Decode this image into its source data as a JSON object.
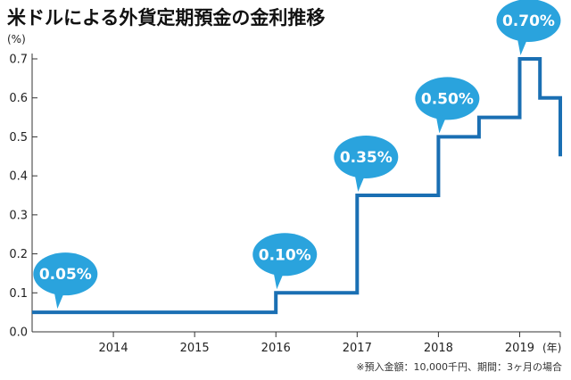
{
  "chart_data": {
    "type": "line",
    "step": true,
    "title": "米ドルによる外貨定期預金の金利推移",
    "ylabel": "(%)",
    "xunit": "(年)",
    "ylim": [
      0.0,
      0.7
    ],
    "yticks": [
      "0.0",
      "0.1",
      "0.2",
      "0.3",
      "0.4",
      "0.5",
      "0.6",
      "0.7"
    ],
    "xlim": [
      2013.0,
      2019.5
    ],
    "xticks": [
      "2014",
      "2015",
      "2016",
      "2017",
      "2018",
      "2019"
    ],
    "grid": false,
    "series": [
      {
        "color": "#1a6fb3",
        "points": [
          {
            "x": 2013.0,
            "y": 0.05
          },
          {
            "x": 2016.0,
            "y": 0.05
          },
          {
            "x": 2016.0,
            "y": 0.1
          },
          {
            "x": 2017.0,
            "y": 0.1
          },
          {
            "x": 2017.0,
            "y": 0.35
          },
          {
            "x": 2018.0,
            "y": 0.35
          },
          {
            "x": 2018.0,
            "y": 0.5
          },
          {
            "x": 2018.5,
            "y": 0.5
          },
          {
            "x": 2018.5,
            "y": 0.55
          },
          {
            "x": 2019.0,
            "y": 0.55
          },
          {
            "x": 2019.0,
            "y": 0.7
          },
          {
            "x": 2019.25,
            "y": 0.7
          },
          {
            "x": 2019.25,
            "y": 0.6
          },
          {
            "x": 2019.5,
            "y": 0.6
          },
          {
            "x": 2019.5,
            "y": 0.45
          }
        ]
      }
    ],
    "annotations": [
      {
        "label": "0.05%",
        "x": 2013.3,
        "y": 0.05
      },
      {
        "label": "0.10%",
        "x": 2016.0,
        "y": 0.1
      },
      {
        "label": "0.35%",
        "x": 2017.0,
        "y": 0.35
      },
      {
        "label": "0.50%",
        "x": 2018.0,
        "y": 0.5
      },
      {
        "label": "0.70%",
        "x": 2019.0,
        "y": 0.7
      }
    ],
    "callout_color": "#2aa3dd"
  },
  "footnote": "※預入金額：10,000千円、期間：3ヶ月の場合"
}
